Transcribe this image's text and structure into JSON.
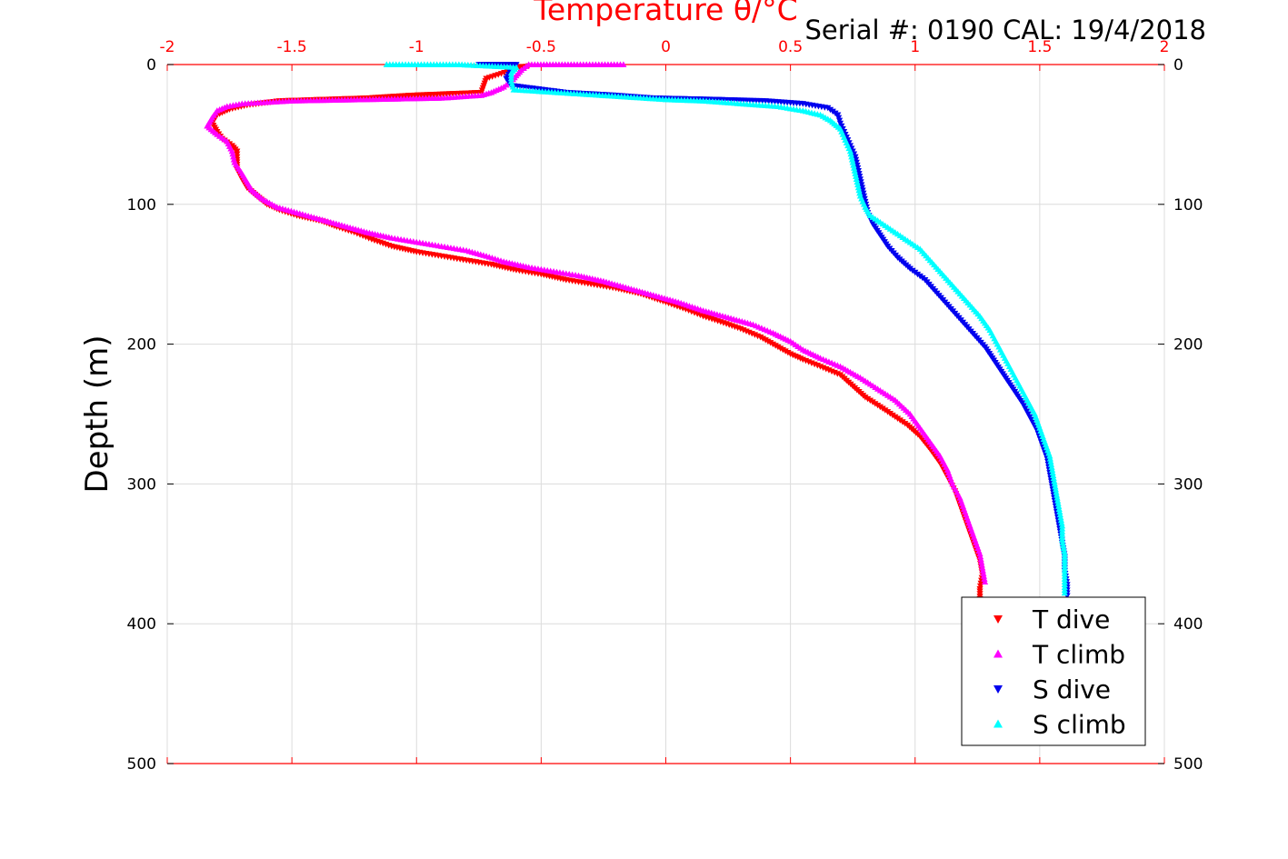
{
  "chart_data": {
    "type": "scatter",
    "title": "Serial #: 0190  CAL: 19/4/2018",
    "xlabel": "Temperature θ/°C",
    "ylabel": "Depth (m)",
    "xlim": [
      -2,
      2
    ],
    "ylim": [
      500,
      0
    ],
    "x_ticks": [
      "-2",
      "-1.5",
      "-1",
      "-0.5",
      "0",
      "0.5",
      "1",
      "1.5",
      "2"
    ],
    "y_ticks": [
      "0",
      "100",
      "200",
      "300",
      "400",
      "500"
    ],
    "grid": true,
    "legend_position": "bottom-right",
    "series": [
      {
        "name": "T dive",
        "color": "#ff0000",
        "marker": "triangle-down",
        "points": [
          [
            -0.55,
            1
          ],
          [
            -0.6,
            3
          ],
          [
            -0.72,
            10
          ],
          [
            -0.73,
            15
          ],
          [
            -0.74,
            20
          ],
          [
            -1.02,
            22
          ],
          [
            -1.2,
            24
          ],
          [
            -1.55,
            26
          ],
          [
            -1.68,
            29
          ],
          [
            -1.75,
            32
          ],
          [
            -1.8,
            36
          ],
          [
            -1.82,
            42
          ],
          [
            -1.8,
            48
          ],
          [
            -1.78,
            53
          ],
          [
            -1.74,
            58
          ],
          [
            -1.72,
            62
          ],
          [
            -1.72,
            68
          ],
          [
            -1.72,
            75
          ],
          [
            -1.7,
            82
          ],
          [
            -1.68,
            88
          ],
          [
            -1.64,
            94
          ],
          [
            -1.6,
            100
          ],
          [
            -1.55,
            104
          ],
          [
            -1.48,
            108
          ],
          [
            -1.38,
            112
          ],
          [
            -1.32,
            116
          ],
          [
            -1.25,
            120
          ],
          [
            -1.18,
            125
          ],
          [
            -1.1,
            130
          ],
          [
            -1.0,
            134
          ],
          [
            -0.9,
            137
          ],
          [
            -0.8,
            140
          ],
          [
            -0.7,
            143
          ],
          [
            -0.6,
            147
          ],
          [
            -0.5,
            150
          ],
          [
            -0.4,
            154
          ],
          [
            -0.3,
            157
          ],
          [
            -0.2,
            160
          ],
          [
            -0.1,
            164
          ],
          [
            0.0,
            170
          ],
          [
            0.08,
            175
          ],
          [
            0.15,
            180
          ],
          [
            0.22,
            184
          ],
          [
            0.3,
            189
          ],
          [
            0.38,
            195
          ],
          [
            0.45,
            202
          ],
          [
            0.5,
            207
          ],
          [
            0.55,
            211
          ],
          [
            0.62,
            216
          ],
          [
            0.7,
            222
          ],
          [
            0.75,
            230
          ],
          [
            0.8,
            238
          ],
          [
            0.87,
            246
          ],
          [
            0.92,
            252
          ],
          [
            0.97,
            258
          ],
          [
            1.02,
            266
          ],
          [
            1.06,
            275
          ],
          [
            1.1,
            285
          ],
          [
            1.13,
            295
          ],
          [
            1.16,
            305
          ],
          [
            1.18,
            315
          ],
          [
            1.2,
            325
          ],
          [
            1.22,
            335
          ],
          [
            1.24,
            345
          ],
          [
            1.26,
            355
          ],
          [
            1.27,
            365
          ],
          [
            1.26,
            375
          ],
          [
            1.26,
            382
          ]
        ]
      },
      {
        "name": "T climb",
        "color": "#ff00ff",
        "marker": "triangle-up",
        "points": [
          [
            -0.17,
            0
          ],
          [
            -0.38,
            0
          ],
          [
            -0.55,
            0
          ],
          [
            -0.58,
            4
          ],
          [
            -0.6,
            8
          ],
          [
            -0.62,
            12
          ],
          [
            -0.65,
            16
          ],
          [
            -0.7,
            20
          ],
          [
            -0.74,
            22
          ],
          [
            -0.9,
            24
          ],
          [
            -1.2,
            25
          ],
          [
            -1.5,
            26
          ],
          [
            -1.7,
            28
          ],
          [
            -1.76,
            30
          ],
          [
            -1.8,
            33
          ],
          [
            -1.82,
            38
          ],
          [
            -1.84,
            44
          ],
          [
            -1.8,
            50
          ],
          [
            -1.76,
            55
          ],
          [
            -1.74,
            62
          ],
          [
            -1.73,
            70
          ],
          [
            -1.7,
            78
          ],
          [
            -1.68,
            84
          ],
          [
            -1.66,
            90
          ],
          [
            -1.62,
            96
          ],
          [
            -1.56,
            102
          ],
          [
            -1.48,
            106
          ],
          [
            -1.4,
            110
          ],
          [
            -1.3,
            115
          ],
          [
            -1.2,
            120
          ],
          [
            -1.1,
            124
          ],
          [
            -1.0,
            127
          ],
          [
            -0.9,
            130
          ],
          [
            -0.8,
            133
          ],
          [
            -0.72,
            137
          ],
          [
            -0.65,
            141
          ],
          [
            -0.55,
            145
          ],
          [
            -0.45,
            148
          ],
          [
            -0.35,
            151
          ],
          [
            -0.25,
            155
          ],
          [
            -0.15,
            160
          ],
          [
            -0.05,
            165
          ],
          [
            0.05,
            170
          ],
          [
            0.15,
            176
          ],
          [
            0.25,
            181
          ],
          [
            0.35,
            186
          ],
          [
            0.43,
            192
          ],
          [
            0.5,
            198
          ],
          [
            0.55,
            204
          ],
          [
            0.62,
            210
          ],
          [
            0.7,
            216
          ],
          [
            0.78,
            224
          ],
          [
            0.85,
            232
          ],
          [
            0.92,
            240
          ],
          [
            0.98,
            250
          ],
          [
            1.02,
            260
          ],
          [
            1.06,
            270
          ],
          [
            1.1,
            280
          ],
          [
            1.13,
            290
          ],
          [
            1.15,
            300
          ],
          [
            1.18,
            310
          ],
          [
            1.2,
            320
          ],
          [
            1.22,
            330
          ],
          [
            1.24,
            340
          ],
          [
            1.26,
            350
          ],
          [
            1.27,
            360
          ],
          [
            1.28,
            370
          ]
        ]
      },
      {
        "name": "S dive",
        "color": "#0000ee",
        "marker": "triangle-down",
        "points": [
          [
            -0.75,
            0
          ],
          [
            -0.6,
            0
          ],
          [
            -0.62,
            4
          ],
          [
            -0.64,
            10
          ],
          [
            -0.62,
            15
          ],
          [
            -0.4,
            20
          ],
          [
            -0.2,
            22
          ],
          [
            -0.05,
            24
          ],
          [
            0.2,
            25
          ],
          [
            0.4,
            26
          ],
          [
            0.55,
            28
          ],
          [
            0.65,
            31
          ],
          [
            0.69,
            36
          ],
          [
            0.7,
            42
          ],
          [
            0.72,
            50
          ],
          [
            0.74,
            58
          ],
          [
            0.76,
            66
          ],
          [
            0.77,
            74
          ],
          [
            0.78,
            82
          ],
          [
            0.79,
            90
          ],
          [
            0.8,
            98
          ],
          [
            0.81,
            106
          ],
          [
            0.83,
            114
          ],
          [
            0.86,
            122
          ],
          [
            0.89,
            130
          ],
          [
            0.93,
            138
          ],
          [
            0.98,
            146
          ],
          [
            1.04,
            154
          ],
          [
            1.08,
            162
          ],
          [
            1.12,
            170
          ],
          [
            1.16,
            178
          ],
          [
            1.2,
            186
          ],
          [
            1.24,
            194
          ],
          [
            1.28,
            202
          ],
          [
            1.31,
            210
          ],
          [
            1.34,
            218
          ],
          [
            1.37,
            226
          ],
          [
            1.4,
            234
          ],
          [
            1.43,
            242
          ],
          [
            1.46,
            252
          ],
          [
            1.49,
            262
          ],
          [
            1.51,
            272
          ],
          [
            1.53,
            282
          ],
          [
            1.54,
            292
          ],
          [
            1.55,
            302
          ],
          [
            1.56,
            312
          ],
          [
            1.57,
            322
          ],
          [
            1.58,
            332
          ],
          [
            1.59,
            342
          ],
          [
            1.6,
            352
          ],
          [
            1.6,
            362
          ],
          [
            1.61,
            372
          ],
          [
            1.61,
            380
          ]
        ]
      },
      {
        "name": "S climb",
        "color": "#00ffff",
        "marker": "triangle-up",
        "points": [
          [
            -1.12,
            0
          ],
          [
            -0.83,
            0
          ],
          [
            -0.6,
            2
          ],
          [
            -0.62,
            6
          ],
          [
            -0.62,
            12
          ],
          [
            -0.61,
            18
          ],
          [
            0.0,
            25
          ],
          [
            0.15,
            26
          ],
          [
            0.3,
            28
          ],
          [
            0.45,
            30
          ],
          [
            0.55,
            33
          ],
          [
            0.62,
            36
          ],
          [
            0.66,
            40
          ],
          [
            0.7,
            46
          ],
          [
            0.72,
            54
          ],
          [
            0.74,
            62
          ],
          [
            0.75,
            70
          ],
          [
            0.76,
            78
          ],
          [
            0.77,
            86
          ],
          [
            0.78,
            94
          ],
          [
            0.8,
            102
          ],
          [
            0.82,
            108
          ],
          [
            0.87,
            114
          ],
          [
            0.92,
            120
          ],
          [
            0.97,
            126
          ],
          [
            1.02,
            132
          ],
          [
            1.06,
            140
          ],
          [
            1.1,
            148
          ],
          [
            1.14,
            156
          ],
          [
            1.18,
            164
          ],
          [
            1.22,
            172
          ],
          [
            1.26,
            180
          ],
          [
            1.3,
            190
          ],
          [
            1.33,
            200
          ],
          [
            1.36,
            210
          ],
          [
            1.39,
            220
          ],
          [
            1.42,
            230
          ],
          [
            1.45,
            240
          ],
          [
            1.48,
            250
          ],
          [
            1.5,
            260
          ],
          [
            1.52,
            270
          ],
          [
            1.54,
            280
          ],
          [
            1.55,
            290
          ],
          [
            1.56,
            300
          ],
          [
            1.57,
            310
          ],
          [
            1.58,
            320
          ],
          [
            1.59,
            330
          ],
          [
            1.59,
            340
          ],
          [
            1.6,
            350
          ],
          [
            1.6,
            360
          ],
          [
            1.6,
            370
          ],
          [
            1.6,
            378
          ]
        ]
      }
    ]
  }
}
